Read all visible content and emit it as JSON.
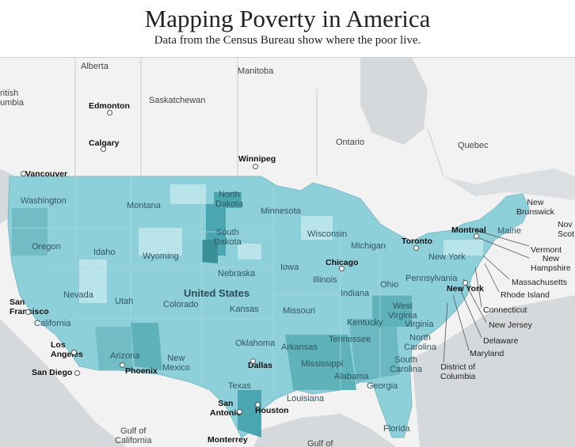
{
  "header": {
    "title": "Mapping Poverty in America",
    "subtitle": "Data from the Census Bureau show where the poor live."
  },
  "map": {
    "country_label": "United States",
    "colors": {
      "land": "#f2f2f2",
      "water": "#d6d9dc",
      "us_base": "#8ed0da",
      "us_high": "#4aa6b0",
      "us_low": "#b9e5ea"
    },
    "regions": {
      "alberta": "Alberta",
      "manitoba": "Manitoba",
      "saskatchewan": "Saskatchewan",
      "ontario": "Ontario",
      "quebec": "Quebec",
      "british_columbia": "ritish\numbia",
      "gulf_california": "Gulf of\nCalifornia",
      "gulf_mexico": "Gulf of"
    },
    "cities": {
      "edmonton": "Edmonton",
      "calgary": "Calgary",
      "winnipeg": "Winnipeg",
      "vancouver": "Vancouver",
      "toronto": "Toronto",
      "montreal": "Montreal",
      "chicago": "Chicago",
      "new_york": "New York",
      "san_francisco": "San\nFrancisco",
      "los_angeles": "Los\nAngeles",
      "san_diego": "San Diego",
      "phoenix": "Phoenix",
      "dallas": "Dallas",
      "houston": "Houston",
      "san_antonio": "San\nAntonio",
      "monterrey": "Monterrey"
    },
    "states": {
      "washington": "Washington",
      "oregon": "Oregon",
      "california": "California",
      "nevada": "Nevada",
      "idaho": "Idaho",
      "montana": "Montana",
      "wyoming": "Wyoming",
      "utah": "Utah",
      "arizona": "Arizona",
      "colorado": "Colorado",
      "new_mexico": "New\nMexico",
      "north_dakota": "North\nDakota",
      "south_dakota": "South\nDakota",
      "nebraska": "Nebraska",
      "kansas": "Kansas",
      "oklahoma": "Oklahoma",
      "texas": "Texas",
      "minnesota": "Minnesota",
      "iowa": "Iowa",
      "missouri": "Missouri",
      "arkansas": "Arkansas",
      "louisiana": "Louisiana",
      "wisconsin": "Wisconsin",
      "illinois": "Illinois",
      "michigan": "Michigan",
      "indiana": "Indiana",
      "ohio": "Ohio",
      "kentucky": "Kentucky",
      "tennessee": "Tennessee",
      "mississippi": "Mississippi",
      "alabama": "Alabama",
      "georgia": "Georgia",
      "florida": "Florida",
      "south_carolina": "South\nCarolina",
      "north_carolina": "North\nCarolina",
      "virginia": "Virginia",
      "west_virginia": "West\nVirginia",
      "pennsylvania": "Pennsylvania",
      "new_york": "New York",
      "maine": "Maine",
      "nova_scotia": "Nov\nScot",
      "new_brunswick": "New\nBrunswick"
    },
    "callouts": [
      "Vermont",
      "New\nHampshire",
      "Massachusetts",
      "Rhode Island",
      "Connecticut",
      "New Jersey",
      "Delaware",
      "Maryland",
      "District of\nColumbia"
    ]
  }
}
